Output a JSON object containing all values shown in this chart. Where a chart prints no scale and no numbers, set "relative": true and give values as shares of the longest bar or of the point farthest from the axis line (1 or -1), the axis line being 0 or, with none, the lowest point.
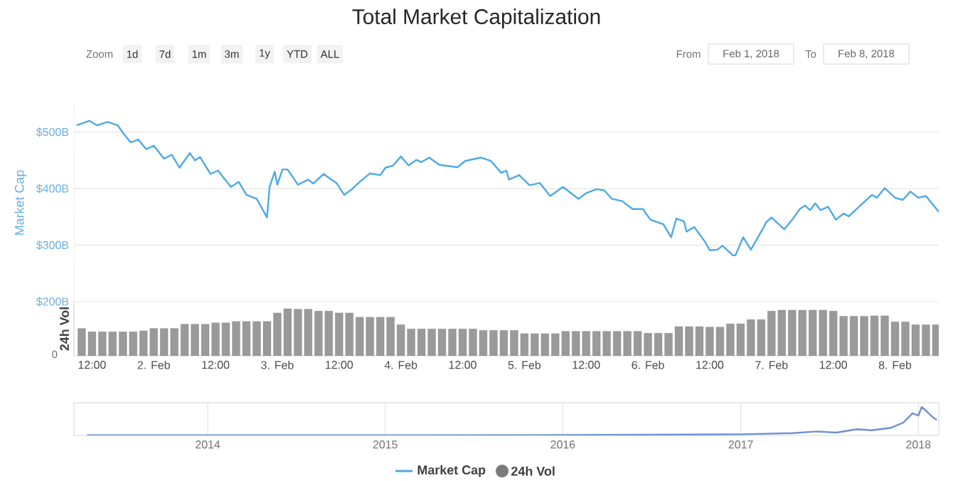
{
  "chart_data": [
    {
      "type": "line",
      "title": "Total Market Capitalization",
      "ylabel": "Market Cap",
      "annotations": [
        "Zoom",
        "1d",
        "7d",
        "1m",
        "3m",
        "1y",
        "YTD",
        "ALL",
        "From",
        "Feb 1, 2018",
        "To",
        "Feb 8, 2018"
      ],
      "xlim": [
        "2018-02-01T08:30",
        "2018-02-08T08:30"
      ],
      "ylim": [
        200,
        550
      ],
      "yticks": [
        {
          "value": 200,
          "label": "$200B"
        },
        {
          "value": 300,
          "label": "$300B"
        },
        {
          "value": 400,
          "label": "$400B"
        },
        {
          "value": 500,
          "label": "$500B"
        }
      ],
      "grid": "y",
      "tick_labels": "y",
      "legend": "bottom",
      "series": [
        {
          "name": "Market Cap",
          "color": "#4ea9e6",
          "x": [
            "2018-02-01T09:00",
            "2018-02-01T11:30",
            "2018-02-01T13:00",
            "2018-02-01T15:00",
            "2018-02-01T17:00",
            "2018-02-01T18:00",
            "2018-02-01T19:30",
            "2018-02-01T21:00",
            "2018-02-01T22:30",
            "2018-02-02T00:00",
            "2018-02-02T02:00",
            "2018-02-02T03:30",
            "2018-02-02T05:00",
            "2018-02-02T07:00",
            "2018-02-02T08:00",
            "2018-02-02T09:00",
            "2018-02-02T11:00",
            "2018-02-02T12:30",
            "2018-02-02T13:30",
            "2018-02-02T15:00",
            "2018-02-02T16:30",
            "2018-02-02T18:00",
            "2018-02-02T20:00",
            "2018-02-02T22:00",
            "2018-02-02T22:30",
            "2018-02-02T23:30",
            "2018-02-03T00:00",
            "2018-02-03T01:00",
            "2018-02-03T02:00",
            "2018-02-03T04:00",
            "2018-02-03T06:00",
            "2018-02-03T07:00",
            "2018-02-03T09:00",
            "2018-02-03T10:30",
            "2018-02-03T11:30",
            "2018-02-03T13:00",
            "2018-02-03T14:30",
            "2018-02-03T16:00",
            "2018-02-03T18:00",
            "2018-02-03T20:00",
            "2018-02-03T21:00",
            "2018-02-03T22:30",
            "2018-02-04T00:00",
            "2018-02-04T01:30",
            "2018-02-04T03:00",
            "2018-02-04T04:00",
            "2018-02-04T05:30",
            "2018-02-04T07:30",
            "2018-02-04T11:00",
            "2018-02-04T12:30",
            "2018-02-04T15:30",
            "2018-02-04T17:30",
            "2018-02-04T19:30",
            "2018-02-04T20:30",
            "2018-02-04T21:00",
            "2018-02-04T23:00",
            "2018-02-05T01:00",
            "2018-02-05T03:00",
            "2018-02-05T05:00",
            "2018-02-05T07:30",
            "2018-02-05T10:30",
            "2018-02-05T12:00",
            "2018-02-05T14:00",
            "2018-02-05T15:30",
            "2018-02-05T17:00",
            "2018-02-05T19:00",
            "2018-02-05T21:00",
            "2018-02-05T23:00",
            "2018-02-06T00:30",
            "2018-02-06T03:00",
            "2018-02-06T04:30",
            "2018-02-06T05:30",
            "2018-02-06T07:00",
            "2018-02-06T07:30",
            "2018-02-06T09:00",
            "2018-02-06T11:00",
            "2018-02-06T12:00",
            "2018-02-06T13:30",
            "2018-02-06T14:30",
            "2018-02-06T16:30",
            "2018-02-06T17:00",
            "2018-02-06T18:30",
            "2018-02-06T20:00",
            "2018-02-06T22:30",
            "2018-02-06T23:00",
            "2018-02-07T00:00",
            "2018-02-07T02:30",
            "2018-02-07T04:00",
            "2018-02-07T05:30",
            "2018-02-07T06:30",
            "2018-02-07T07:30",
            "2018-02-07T08:30",
            "2018-02-07T09:30",
            "2018-02-07T11:00",
            "2018-02-07T12:30",
            "2018-02-07T14:00",
            "2018-02-07T15:00",
            "2018-02-07T17:00",
            "2018-02-07T19:30",
            "2018-02-07T20:30",
            "2018-02-07T22:00",
            "2018-02-08T00:00",
            "2018-02-08T01:30",
            "2018-02-08T03:00",
            "2018-02-08T04:30",
            "2018-02-08T06:00",
            "2018-02-08T08:30"
          ],
          "values": [
            512,
            520,
            512,
            518,
            512,
            499,
            482,
            487,
            470,
            476,
            453,
            460,
            437,
            463,
            450,
            456,
            426,
            432,
            420,
            403,
            412,
            389,
            382,
            349,
            403,
            430,
            407,
            434,
            434,
            407,
            416,
            409,
            426,
            416,
            410,
            389,
            399,
            412,
            427,
            424,
            437,
            441,
            457,
            441,
            451,
            447,
            455,
            442,
            438,
            449,
            455,
            449,
            428,
            432,
            416,
            424,
            406,
            410,
            387,
            403,
            382,
            392,
            399,
            397,
            382,
            378,
            364,
            364,
            345,
            337,
            314,
            347,
            342,
            324,
            332,
            307,
            291,
            292,
            299,
            282,
            282,
            314,
            292,
            332,
            341,
            349,
            328,
            345,
            364,
            370,
            362,
            374,
            362,
            368,
            345,
            356,
            351,
            368,
            389,
            384,
            401,
            384,
            380,
            395,
            384,
            387,
            359
          ]
        }
      ]
    },
    {
      "type": "bar",
      "ylabel": "24h Vol",
      "relative": true,
      "annotations": [
        "0"
      ],
      "legend": "bottom",
      "xlim": [
        "2018-02-01T08:30",
        "2018-02-08T08:30"
      ],
      "xticks": [
        {
          "value": "2018-02-01T12:00",
          "label": "12:00"
        },
        {
          "value": "2018-02-02T00:00",
          "label": "2. Feb"
        },
        {
          "value": "2018-02-02T12:00",
          "label": "12:00"
        },
        {
          "value": "2018-02-03T00:00",
          "label": "3. Feb"
        },
        {
          "value": "2018-02-03T12:00",
          "label": "12:00"
        },
        {
          "value": "2018-02-04T00:00",
          "label": "4. Feb"
        },
        {
          "value": "2018-02-04T12:00",
          "label": "12:00"
        },
        {
          "value": "2018-02-05T00:00",
          "label": "5. Feb"
        },
        {
          "value": "2018-02-05T12:00",
          "label": "12:00"
        },
        {
          "value": "2018-02-06T00:00",
          "label": "6. Feb"
        },
        {
          "value": "2018-02-06T12:00",
          "label": "12:00"
        },
        {
          "value": "2018-02-07T00:00",
          "label": "7. Feb"
        },
        {
          "value": "2018-02-07T12:00",
          "label": "12:00"
        },
        {
          "value": "2018-02-08T00:00",
          "label": "8. Feb"
        }
      ],
      "tick_labels": "x",
      "series": [
        {
          "name": "24h Vol",
          "color": "#9a9a9a",
          "x": [
            "2018-02-01T10:00",
            "2018-02-01T12:00",
            "2018-02-01T14:00",
            "2018-02-01T16:00",
            "2018-02-01T18:00",
            "2018-02-01T20:00",
            "2018-02-01T22:00",
            "2018-02-02T00:00",
            "2018-02-02T02:00",
            "2018-02-02T04:00",
            "2018-02-02T06:00",
            "2018-02-02T08:00",
            "2018-02-02T10:00",
            "2018-02-02T12:00",
            "2018-02-02T14:00",
            "2018-02-02T16:00",
            "2018-02-02T18:00",
            "2018-02-02T20:00",
            "2018-02-02T22:00",
            "2018-02-03T00:00",
            "2018-02-03T02:00",
            "2018-02-03T04:00",
            "2018-02-03T06:00",
            "2018-02-03T08:00",
            "2018-02-03T10:00",
            "2018-02-03T12:00",
            "2018-02-03T14:00",
            "2018-02-03T16:00",
            "2018-02-03T18:00",
            "2018-02-03T20:00",
            "2018-02-03T22:00",
            "2018-02-04T00:00",
            "2018-02-04T02:00",
            "2018-02-04T04:00",
            "2018-02-04T06:00",
            "2018-02-04T08:00",
            "2018-02-04T10:00",
            "2018-02-04T12:00",
            "2018-02-04T14:00",
            "2018-02-04T16:00",
            "2018-02-04T18:00",
            "2018-02-04T20:00",
            "2018-02-04T22:00",
            "2018-02-05T00:00",
            "2018-02-05T02:00",
            "2018-02-05T04:00",
            "2018-02-05T06:00",
            "2018-02-05T08:00",
            "2018-02-05T10:00",
            "2018-02-05T12:00",
            "2018-02-05T14:00",
            "2018-02-05T16:00",
            "2018-02-05T18:00",
            "2018-02-05T20:00",
            "2018-02-05T22:00",
            "2018-02-06T00:00",
            "2018-02-06T02:00",
            "2018-02-06T04:00",
            "2018-02-06T06:00",
            "2018-02-06T08:00",
            "2018-02-06T10:00",
            "2018-02-06T12:00",
            "2018-02-06T14:00",
            "2018-02-06T16:00",
            "2018-02-06T18:00",
            "2018-02-06T20:00",
            "2018-02-06T22:00",
            "2018-02-07T00:00",
            "2018-02-07T02:00",
            "2018-02-07T04:00",
            "2018-02-07T06:00",
            "2018-02-07T08:00",
            "2018-02-07T10:00",
            "2018-02-07T12:00",
            "2018-02-07T14:00",
            "2018-02-07T16:00",
            "2018-02-07T18:00",
            "2018-02-07T20:00",
            "2018-02-07T22:00",
            "2018-02-08T00:00",
            "2018-02-08T02:00",
            "2018-02-08T04:00",
            "2018-02-08T06:00",
            "2018-02-08T08:00"
          ],
          "values": [
            0.58,
            0.51,
            0.51,
            0.51,
            0.51,
            0.51,
            0.53,
            0.58,
            0.58,
            0.58,
            0.67,
            0.67,
            0.67,
            0.7,
            0.7,
            0.73,
            0.73,
            0.73,
            0.73,
            0.91,
            1.0,
            0.99,
            0.99,
            0.95,
            0.95,
            0.91,
            0.91,
            0.82,
            0.82,
            0.82,
            0.82,
            0.66,
            0.57,
            0.57,
            0.57,
            0.57,
            0.57,
            0.57,
            0.57,
            0.54,
            0.54,
            0.54,
            0.54,
            0.47,
            0.47,
            0.47,
            0.47,
            0.52,
            0.52,
            0.52,
            0.52,
            0.52,
            0.52,
            0.52,
            0.52,
            0.48,
            0.48,
            0.48,
            0.62,
            0.62,
            0.62,
            0.61,
            0.61,
            0.68,
            0.68,
            0.77,
            0.77,
            0.95,
            0.97,
            0.97,
            0.97,
            0.97,
            0.97,
            0.95,
            0.84,
            0.84,
            0.84,
            0.85,
            0.85,
            0.72,
            0.72,
            0.66,
            0.66,
            0.66
          ]
        }
      ]
    },
    {
      "type": "line",
      "relative": true,
      "grid": "x",
      "tick_labels": "x",
      "xlim": [
        "2013-04-01",
        "2018-02-12"
      ],
      "xticks": [
        {
          "value": "2014-01-01",
          "label": "2014"
        },
        {
          "value": "2015-01-01",
          "label": "2015"
        },
        {
          "value": "2016-01-01",
          "label": "2016"
        },
        {
          "value": "2017-01-01",
          "label": "2017"
        },
        {
          "value": "2018-01-01",
          "label": "2018"
        }
      ],
      "series": [
        {
          "color": "#6f8fd6",
          "x": [
            "2013-04-28",
            "2015-04-01",
            "2016-04-01",
            "2017-01-01",
            "2017-04-17",
            "2017-06-06",
            "2017-07-16",
            "2017-08-28",
            "2017-09-27",
            "2017-11-06",
            "2017-12-01",
            "2017-12-20",
            "2018-01-01",
            "2018-01-08",
            "2018-01-21",
            "2018-02-01",
            "2018-02-08"
          ],
          "values": [
            0.01,
            0.01,
            0.02,
            0.04,
            0.08,
            0.14,
            0.1,
            0.22,
            0.18,
            0.27,
            0.45,
            0.78,
            0.7,
            1.0,
            0.8,
            0.62,
            0.55
          ]
        }
      ]
    }
  ]
}
